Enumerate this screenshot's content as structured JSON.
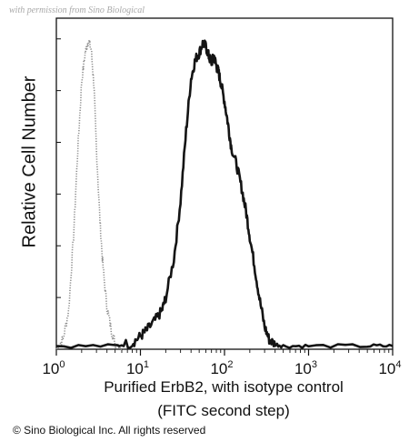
{
  "watermark": "with permission from Sino Biological",
  "copyright": "© Sino Biological Inc. All rights reserved",
  "chart_data": {
    "type": "line",
    "title": "",
    "xlabel_line1": "Purified ErbB2, with isotype control",
    "xlabel_line2": "(FITC second step)",
    "ylabel": "Relative Cell Number",
    "xscale": "log",
    "xlim": [
      1,
      10000
    ],
    "ylim": [
      0,
      100
    ],
    "xticks": [
      {
        "value": 1,
        "base": "10",
        "exp": "0"
      },
      {
        "value": 10,
        "base": "10",
        "exp": "1"
      },
      {
        "value": 100,
        "base": "10",
        "exp": "2"
      },
      {
        "value": 1000,
        "base": "10",
        "exp": "3"
      },
      {
        "value": 10000,
        "base": "10",
        "exp": "4"
      }
    ],
    "grid": false,
    "legend": "none",
    "series": [
      {
        "style": "dotted",
        "color": "#8c8c8c",
        "x": [
          1.0,
          1.2,
          1.4,
          1.6,
          1.8,
          2.0,
          2.2,
          2.4,
          2.6,
          2.8,
          3.0,
          3.3,
          3.6,
          4.0,
          4.5,
          5.0,
          5.5,
          6.0
        ],
        "y": [
          0,
          3,
          12,
          35,
          62,
          83,
          92,
          96,
          93,
          82,
          62,
          40,
          25,
          13,
          6,
          2,
          1,
          0
        ]
      },
      {
        "style": "solid",
        "color": "#141414",
        "x": [
          1,
          5,
          8,
          10,
          12,
          15,
          18,
          20,
          25,
          30,
          35,
          40,
          45,
          50,
          55,
          60,
          65,
          70,
          75,
          80,
          85,
          90,
          100,
          110,
          120,
          140,
          160,
          180,
          200,
          230,
          260,
          300,
          340,
          400,
          500,
          1000,
          5000,
          10000
        ],
        "y": [
          1,
          1,
          2,
          4,
          6,
          9,
          12,
          16,
          28,
          46,
          68,
          84,
          90,
          92,
          95,
          94,
          91,
          89,
          91,
          88,
          86,
          83,
          77,
          70,
          63,
          57,
          50,
          43,
          35,
          25,
          16,
          7,
          3,
          1.5,
          1,
          1,
          1,
          1
        ]
      }
    ]
  }
}
